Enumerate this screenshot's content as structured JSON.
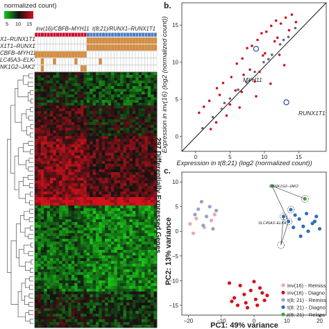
{
  "panel_a": {
    "scale_title": "normalized count)",
    "scale_ticks": [
      "5",
      "10",
      "15"
    ],
    "group_labels": [
      "inv(16)/CBFB–MYH11",
      "t(8;21)/RUNX1–RUNX1T1"
    ],
    "row_labels": [
      "X1–RUNX1T1",
      "X1T1–RUNX1",
      "CBFB–MYH11",
      "LC45A3–ELK4",
      "NK1G2–JAK2"
    ],
    "heatmap_side_label": "297 Differentially Expressed Genes",
    "colors": {
      "low": "#19c819",
      "mid": "#111111",
      "high": "#d4111c",
      "group1": "#c8102e",
      "group2": "#4f7fbf",
      "fusion_on": "#d98c3a"
    }
  },
  "panel_b": {
    "letter": "b.",
    "annotations": [
      "MYH11",
      "RUNX1T1"
    ],
    "chart_data": {
      "type": "scatter",
      "xlabel": "Expression in t(8;21) (log2 (normalized count))",
      "ylabel": "Expression in inv(16) (log2 (normalized count))",
      "x_ticks": [
        "0",
        "5",
        "10",
        "15"
      ],
      "y_ticks": [
        "0",
        "5",
        "10",
        "15"
      ],
      "xlim": [
        -2,
        19
      ],
      "ylim": [
        -2,
        18
      ],
      "series": [
        {
          "name": "",
          "color": "#d4111c",
          "x": [
            0.5,
            1.2,
            2.0,
            3.1,
            4.0,
            5.2,
            6.0,
            6.8,
            7.5,
            8.2,
            9.0,
            9.6,
            10.3,
            11.0,
            11.7,
            12.4,
            13.1,
            14.0,
            2.2,
            4.5,
            6.4,
            8.8,
            10.9,
            12.9,
            3.5,
            5.8,
            7.9,
            9.8,
            11.5,
            13.6,
            7.0,
            8.6,
            10.1,
            11.9,
            5.0,
            6.7,
            9.3,
            12.2,
            3.0,
            14.6
          ],
          "y": [
            3.2,
            4.0,
            4.8,
            6.5,
            7.2,
            8.0,
            9.8,
            10.5,
            11.9,
            12.2,
            13.0,
            13.9,
            14.1,
            14.9,
            15.6,
            15.2,
            16.0,
            16.4,
            1.0,
            2.8,
            3.9,
            5.4,
            7.1,
            9.6,
            5.6,
            6.2,
            9.0,
            10.9,
            12.8,
            14.3,
            8.3,
            7.4,
            11.2,
            13.3,
            4.3,
            6.0,
            8.7,
            11.0,
            1.9,
            15.4
          ]
        },
        {
          "name": "",
          "color": "#666666",
          "x": [
            1.0,
            2.5,
            3.8,
            5.0,
            6.2,
            7.4,
            8.6,
            9.9,
            11.1,
            12.3,
            13.5,
            14.5,
            4.2,
            7.8,
            10.6,
            12.8
          ],
          "y": [
            1.1,
            2.6,
            3.7,
            5.1,
            6.3,
            7.3,
            8.7,
            10.0,
            11.0,
            12.4,
            13.4,
            14.6,
            4.5,
            7.5,
            10.4,
            13.0
          ]
        }
      ],
      "highlight": [
        {
          "label": "MYH11",
          "x": 8.8,
          "y": 11.8
        },
        {
          "label": "RUNX1T1",
          "x": 13.2,
          "y": 4.6
        }
      ]
    }
  },
  "panel_c": {
    "letter": "c.",
    "callouts": [
      "CSNK1G2–JAK2",
      "SLC45A3–ELK4"
    ],
    "chart_data": {
      "type": "scatter",
      "xlabel": "PC1: 49% variance",
      "ylabel": "PC2: 13% variance",
      "x_ticks": [
        "−20",
        "−10",
        "0",
        "10",
        "20"
      ],
      "y_ticks": [
        "−15",
        "−10",
        "−5",
        "0",
        "5",
        "10"
      ],
      "xlim": [
        -22,
        22
      ],
      "ylim": [
        -17,
        12
      ],
      "series": [
        {
          "name": "inv(16) - Remiss",
          "color": "#e7a8b7",
          "x": [
            -19.5,
            -18.5,
            -17.6,
            -15.2,
            -13.0,
            -12.0
          ],
          "y": [
            1.5,
            -0.4,
            2.6,
            0.8,
            2.2,
            3.4
          ]
        },
        {
          "name": "inv(16) - Diagno",
          "color": "#d4111c",
          "x": [
            -7.5,
            -6.0,
            -4.2,
            -2.5,
            -1.0,
            0.5,
            1.8,
            3.2,
            -5.0,
            -3.0,
            0.0,
            2.5,
            -6.8,
            -2.0,
            1.0,
            4.0
          ],
          "y": [
            -10.5,
            -13.5,
            -11.0,
            -14.5,
            -12.0,
            -13.8,
            -11.5,
            -14.0,
            -15.0,
            -12.8,
            -10.2,
            -12.5,
            -14.2,
            -15.5,
            -15.0,
            -13.0
          ]
        },
        {
          "name": "t(8; 21) - Remiss",
          "color": "#9aa0c8",
          "x": [
            -17.0,
            -16.0,
            -14.5,
            -13.5,
            -11.5,
            -15.5,
            -18.0,
            -12.5
          ],
          "y": [
            4.5,
            6.0,
            3.0,
            5.0,
            4.2,
            1.2,
            3.4,
            0.5
          ]
        },
        {
          "name": "t(8; 21) - Diagno",
          "color": "#2e6fb7",
          "x": [
            9.0,
            10.5,
            11.2,
            12.5,
            13.8,
            15.0,
            16.5,
            17.8,
            19.0,
            20.0,
            14.2,
            18.5,
            12.0,
            16.0
          ],
          "y": [
            3.0,
            2.0,
            4.4,
            3.3,
            2.5,
            1.0,
            0.0,
            1.6,
            3.0,
            0.5,
            -1.0,
            2.0,
            0.8,
            3.6
          ]
        },
        {
          "name": "t(8; 21) - Relaps",
          "color": "#3aa53a",
          "x": [
            5.5,
            15.5
          ],
          "y": [
            9.2,
            6.6
          ]
        }
      ]
    }
  }
}
